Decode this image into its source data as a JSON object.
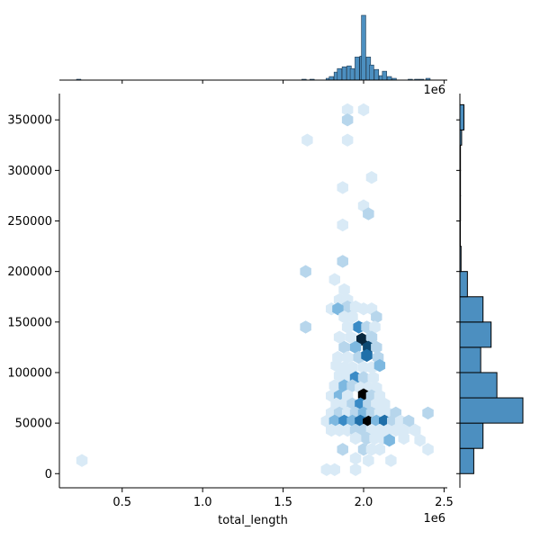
{
  "chart_data": {
    "type": "hexbin",
    "xlabel": "total_length",
    "ylabel": "",
    "x_offset_label": "1e6",
    "xlim": [
      0.11,
      2.52
    ],
    "ylim": [
      -14000,
      376000
    ],
    "x_ticks": [
      {
        "value": 0.5,
        "label": "0.5"
      },
      {
        "value": 1.0,
        "label": "1.0"
      },
      {
        "value": 1.5,
        "label": "1.5"
      },
      {
        "value": 2.0,
        "label": "2.0"
      },
      {
        "value": 2.5,
        "label": "2.5"
      }
    ],
    "y_ticks": [
      {
        "value": 0,
        "label": "0"
      },
      {
        "value": 50000,
        "label": "50000"
      },
      {
        "value": 100000,
        "label": "100000"
      },
      {
        "value": 150000,
        "label": "150000"
      },
      {
        "value": 200000,
        "label": "200000"
      },
      {
        "value": 250000,
        "label": "250000"
      },
      {
        "value": 300000,
        "label": "300000"
      },
      {
        "value": 350000,
        "label": "350000"
      }
    ],
    "color": "#4c8fc0",
    "hex_colors": [
      "#d9eaf6",
      "#b7d6ec",
      "#7db8e0",
      "#3a8bc6",
      "#1f6fa9",
      "#0e4a74",
      "#08263d",
      "#000000"
    ],
    "hex_cells": [
      [
        0.25,
        13000,
        0
      ],
      [
        1.9,
        360000,
        0
      ],
      [
        2.0,
        360000,
        0
      ],
      [
        1.9,
        350000,
        1
      ],
      [
        1.65,
        330000,
        0
      ],
      [
        1.9,
        330000,
        0
      ],
      [
        2.05,
        293000,
        0
      ],
      [
        1.87,
        283000,
        0
      ],
      [
        2.0,
        265000,
        0
      ],
      [
        2.03,
        257000,
        1
      ],
      [
        1.87,
        246000,
        0
      ],
      [
        1.87,
        210000,
        1
      ],
      [
        1.64,
        200000,
        1
      ],
      [
        1.82,
        192000,
        0
      ],
      [
        1.88,
        182000,
        0
      ],
      [
        1.85,
        172000,
        0
      ],
      [
        1.9,
        172000,
        0
      ],
      [
        1.8,
        163000,
        0
      ],
      [
        1.9,
        165000,
        1
      ],
      [
        1.95,
        165000,
        0
      ],
      [
        2.0,
        163000,
        0
      ],
      [
        2.05,
        163000,
        0
      ],
      [
        1.84,
        163000,
        2
      ],
      [
        1.88,
        155000,
        0
      ],
      [
        1.93,
        155000,
        0
      ],
      [
        2.08,
        155000,
        1
      ],
      [
        1.64,
        145000,
        1
      ],
      [
        1.9,
        145000,
        0
      ],
      [
        1.97,
        145000,
        3
      ],
      [
        2.02,
        145000,
        1
      ],
      [
        2.07,
        145000,
        0
      ],
      [
        1.85,
        135000,
        0
      ],
      [
        1.92,
        135000,
        0
      ],
      [
        1.99,
        133000,
        6
      ],
      [
        2.05,
        135000,
        1
      ],
      [
        1.88,
        125000,
        1
      ],
      [
        1.95,
        125000,
        2
      ],
      [
        2.03,
        125000,
        5
      ],
      [
        2.08,
        125000,
        1
      ],
      [
        1.84,
        115000,
        0
      ],
      [
        1.9,
        115000,
        0
      ],
      [
        1.97,
        115000,
        1
      ],
      [
        2.02,
        117000,
        4
      ],
      [
        2.09,
        115000,
        1
      ],
      [
        1.83,
        107000,
        0
      ],
      [
        1.88,
        105000,
        0
      ],
      [
        1.93,
        105000,
        0
      ],
      [
        2.0,
        105000,
        0
      ],
      [
        2.05,
        105000,
        0
      ],
      [
        2.1,
        107000,
        2
      ],
      [
        1.85,
        97000,
        0
      ],
      [
        1.9,
        97000,
        0
      ],
      [
        1.95,
        95000,
        3
      ],
      [
        2.0,
        95000,
        1
      ],
      [
        2.06,
        95000,
        0
      ],
      [
        1.82,
        87000,
        0
      ],
      [
        1.88,
        87000,
        2
      ],
      [
        1.93,
        87000,
        1
      ],
      [
        1.98,
        85000,
        0
      ],
      [
        2.03,
        85000,
        0
      ],
      [
        2.08,
        85000,
        0
      ],
      [
        1.8,
        77000,
        0
      ],
      [
        1.85,
        77000,
        2
      ],
      [
        1.9,
        77000,
        0
      ],
      [
        2.0,
        78000,
        7
      ],
      [
        2.05,
        77000,
        1
      ],
      [
        2.1,
        77000,
        0
      ],
      [
        1.83,
        69000,
        0
      ],
      [
        1.88,
        69000,
        0
      ],
      [
        1.93,
        69000,
        1
      ],
      [
        1.98,
        69000,
        3
      ],
      [
        2.03,
        69000,
        1
      ],
      [
        2.08,
        69000,
        0
      ],
      [
        2.13,
        69000,
        0
      ],
      [
        1.8,
        60000,
        0
      ],
      [
        1.85,
        60000,
        1
      ],
      [
        1.9,
        60000,
        0
      ],
      [
        1.95,
        60000,
        1
      ],
      [
        2.0,
        60000,
        2
      ],
      [
        2.05,
        60000,
        1
      ],
      [
        2.1,
        60000,
        0
      ],
      [
        2.15,
        60000,
        0
      ],
      [
        2.2,
        60000,
        1
      ],
      [
        2.4,
        60000,
        1
      ],
      [
        1.77,
        52000,
        0
      ],
      [
        1.82,
        52000,
        2
      ],
      [
        1.88,
        52000,
        3
      ],
      [
        1.93,
        52000,
        2
      ],
      [
        1.98,
        52000,
        4
      ],
      [
        2.03,
        51000,
        7
      ],
      [
        2.08,
        52000,
        2
      ],
      [
        2.13,
        52000,
        4
      ],
      [
        2.18,
        52000,
        1
      ],
      [
        2.23,
        52000,
        0
      ],
      [
        2.28,
        52000,
        1
      ],
      [
        1.8,
        43000,
        0
      ],
      [
        1.85,
        43000,
        0
      ],
      [
        1.9,
        43000,
        0
      ],
      [
        1.95,
        43000,
        1
      ],
      [
        2.0,
        43000,
        1
      ],
      [
        2.05,
        43000,
        0
      ],
      [
        2.1,
        43000,
        0
      ],
      [
        2.15,
        43000,
        0
      ],
      [
        2.2,
        43000,
        0
      ],
      [
        2.25,
        43000,
        0
      ],
      [
        2.32,
        43000,
        0
      ],
      [
        1.95,
        35000,
        0
      ],
      [
        2.02,
        35000,
        1
      ],
      [
        2.07,
        35000,
        0
      ],
      [
        2.12,
        35000,
        0
      ],
      [
        2.16,
        33000,
        2
      ],
      [
        2.25,
        35000,
        0
      ],
      [
        2.35,
        33000,
        0
      ],
      [
        1.87,
        24000,
        1
      ],
      [
        2.0,
        24000,
        1
      ],
      [
        2.05,
        24000,
        0
      ],
      [
        2.1,
        24000,
        0
      ],
      [
        2.4,
        24000,
        0
      ],
      [
        1.95,
        15000,
        0
      ],
      [
        2.03,
        13000,
        0
      ],
      [
        2.17,
        13000,
        0
      ],
      [
        1.77,
        4000,
        0
      ],
      [
        1.82,
        4000,
        0
      ],
      [
        1.95,
        4000,
        0
      ]
    ],
    "top_histogram": {
      "counts": [
        [
          0.23,
          1
        ],
        [
          1.63,
          1
        ],
        [
          1.68,
          1
        ],
        [
          1.78,
          2
        ],
        [
          1.8,
          4
        ],
        [
          1.83,
          9
        ],
        [
          1.85,
          13
        ],
        [
          1.88,
          15
        ],
        [
          1.91,
          16
        ],
        [
          1.93,
          13
        ],
        [
          1.96,
          26
        ],
        [
          1.99,
          27
        ],
        [
          2.0,
          73
        ],
        [
          2.03,
          26
        ],
        [
          2.05,
          17
        ],
        [
          2.08,
          12
        ],
        [
          2.11,
          5
        ],
        [
          2.13,
          10
        ],
        [
          2.16,
          4
        ],
        [
          2.19,
          2
        ],
        [
          2.29,
          1
        ],
        [
          2.33,
          1
        ],
        [
          2.36,
          1
        ],
        [
          2.4,
          2
        ]
      ],
      "bin_width": 0.027
    },
    "right_histogram": {
      "counts": [
        [
          12500,
          24
        ],
        [
          37500,
          40
        ],
        [
          62500,
          109
        ],
        [
          87500,
          64
        ],
        [
          112500,
          36
        ],
        [
          137500,
          54
        ],
        [
          162500,
          40
        ],
        [
          187500,
          13
        ],
        [
          212500,
          2
        ],
        [
          237500,
          0
        ],
        [
          262500,
          1
        ],
        [
          287500,
          1
        ],
        [
          312500,
          1
        ],
        [
          337500,
          3
        ],
        [
          352500,
          7
        ]
      ],
      "bin_width": 25000
    }
  }
}
